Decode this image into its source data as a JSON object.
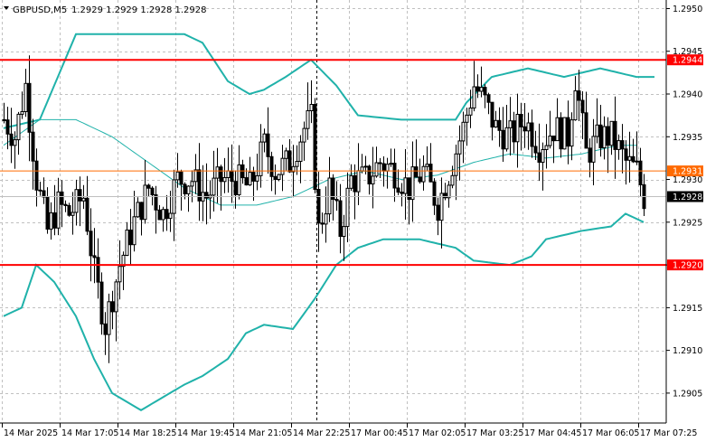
{
  "header": {
    "symbol": "GBPUSD,M5",
    "ohlc": "1.2929 1.2929 1.2928 1.2928"
  },
  "chart_data": {
    "type": "candlestick",
    "symbol": "GBPUSD",
    "timeframe": "M5",
    "y_ticks": [
      "1.2950",
      "1.2945",
      "1.2940",
      "1.2935",
      "1.2930",
      "1.2925",
      "1.2920",
      "1.2915",
      "1.2910",
      "1.2905"
    ],
    "y_tick_values": [
      1.295,
      1.2945,
      1.294,
      1.2935,
      1.293,
      1.2925,
      1.292,
      1.2915,
      1.291,
      1.2905
    ],
    "ylim": [
      1.29015,
      1.2951
    ],
    "x_ticks": [
      "14 Mar 2025",
      "14 Mar 17:05",
      "14 Mar 18:25",
      "14 Mar 19:45",
      "14 Mar 21:05",
      "14 Mar 22:25",
      "17 Mar 00:45",
      "17 Mar 02:05",
      "17 Mar 03:25",
      "17 Mar 04:45",
      "17 Mar 06:05",
      "17 Mar 07:25"
    ],
    "grid": true,
    "levels": [
      {
        "label": "1.2944",
        "value": 1.2944,
        "color": "#ff0000"
      },
      {
        "label": "1.2931",
        "value": 1.2931,
        "color": "#ff6a00"
      },
      {
        "label": "1.2920",
        "value": 1.292,
        "color": "#ff0000"
      }
    ],
    "current_price": {
      "label": "1.2928",
      "value": 1.2928,
      "color": "#000000"
    },
    "session_separator_index": 87,
    "bollinger": {
      "color": "#20b2aa",
      "upper": [
        [
          0,
          1.2936
        ],
        [
          10,
          1.2937
        ],
        [
          20,
          1.2947
        ],
        [
          30,
          1.2947
        ],
        [
          40,
          1.2947
        ],
        [
          50,
          1.2947
        ],
        [
          55,
          1.2946
        ],
        [
          62,
          1.29415
        ],
        [
          68,
          1.294
        ],
        [
          72,
          1.29405
        ],
        [
          78,
          1.2942
        ],
        [
          85,
          1.2944
        ],
        [
          92,
          1.2941
        ],
        [
          98,
          1.29375
        ],
        [
          110,
          1.2937
        ],
        [
          125,
          1.2937
        ],
        [
          128,
          1.2939
        ],
        [
          135,
          1.2942
        ],
        [
          145,
          1.2943
        ],
        [
          155,
          1.2942
        ],
        [
          165,
          1.2943
        ],
        [
          175,
          1.2942
        ],
        [
          180,
          1.2942
        ]
      ],
      "middle": [
        [
          0,
          1.2934
        ],
        [
          10,
          1.2937
        ],
        [
          20,
          1.2937
        ],
        [
          30,
          1.2935
        ],
        [
          40,
          1.2932
        ],
        [
          50,
          1.2929
        ],
        [
          60,
          1.2927
        ],
        [
          70,
          1.2927
        ],
        [
          80,
          1.2928
        ],
        [
          85,
          1.2929
        ],
        [
          90,
          1.293
        ],
        [
          100,
          1.2931
        ],
        [
          110,
          1.293
        ],
        [
          120,
          1.29305
        ],
        [
          130,
          1.2932
        ],
        [
          140,
          1.2933
        ],
        [
          150,
          1.29325
        ],
        [
          160,
          1.2933
        ],
        [
          170,
          1.2934
        ],
        [
          175,
          1.2934
        ]
      ],
      "lower": [
        [
          0,
          1.2914
        ],
        [
          5,
          1.2915
        ],
        [
          9,
          1.292
        ],
        [
          14,
          1.2918
        ],
        [
          20,
          1.2914
        ],
        [
          25,
          1.2909
        ],
        [
          30,
          1.2905
        ],
        [
          38,
          1.2903
        ],
        [
          42,
          1.2904
        ],
        [
          50,
          1.2906
        ],
        [
          55,
          1.2907
        ],
        [
          62,
          1.2909
        ],
        [
          67,
          1.2912
        ],
        [
          72,
          1.2913
        ],
        [
          80,
          1.29125
        ],
        [
          86,
          1.2916
        ],
        [
          92,
          1.292
        ],
        [
          98,
          1.2922
        ],
        [
          105,
          1.2923
        ],
        [
          115,
          1.2923
        ],
        [
          125,
          1.2922
        ],
        [
          130,
          1.29205
        ],
        [
          140,
          1.292
        ],
        [
          146,
          1.2921
        ],
        [
          150,
          1.2923
        ],
        [
          160,
          1.2924
        ],
        [
          168,
          1.29245
        ],
        [
          172,
          1.2926
        ],
        [
          177,
          1.2925
        ]
      ]
    },
    "close_path": [
      [
        0,
        1.2937
      ],
      [
        3,
        1.2935
      ],
      [
        6,
        1.2941
      ],
      [
        9,
        1.293
      ],
      [
        12,
        1.2924
      ],
      [
        15,
        1.2927
      ],
      [
        18,
        1.2926
      ],
      [
        22,
        1.2928
      ],
      [
        25,
        1.2919
      ],
      [
        28,
        1.2913
      ],
      [
        32,
        1.292
      ],
      [
        36,
        1.2925
      ],
      [
        40,
        1.2929
      ],
      [
        44,
        1.2926
      ],
      [
        48,
        1.293
      ],
      [
        52,
        1.293
      ],
      [
        56,
        1.2928
      ],
      [
        60,
        1.293
      ],
      [
        64,
        1.293
      ],
      [
        68,
        1.2929
      ],
      [
        72,
        1.2934
      ],
      [
        75,
        1.2931
      ],
      [
        79,
        1.2932
      ],
      [
        83,
        1.2936
      ],
      [
        85,
        1.2937
      ],
      [
        87,
        1.2924
      ],
      [
        90,
        1.2929
      ],
      [
        93,
        1.2924
      ],
      [
        96,
        1.293
      ],
      [
        100,
        1.293
      ],
      [
        104,
        1.2932
      ],
      [
        108,
        1.2931
      ],
      [
        112,
        1.2929
      ],
      [
        116,
        1.2931
      ],
      [
        120,
        1.2927
      ],
      [
        124,
        1.2932
      ],
      [
        127,
        1.2936
      ],
      [
        130,
        1.2941
      ],
      [
        133,
        1.2939
      ],
      [
        136,
        1.2936
      ],
      [
        140,
        1.2935
      ],
      [
        144,
        1.2937
      ],
      [
        148,
        1.2934
      ],
      [
        152,
        1.2936
      ],
      [
        156,
        1.2935
      ],
      [
        158,
        1.2942
      ],
      [
        161,
        1.2933
      ],
      [
        165,
        1.2935
      ],
      [
        168,
        1.2935
      ],
      [
        172,
        1.2932
      ],
      [
        175,
        1.2931
      ],
      [
        177,
        1.2928
      ]
    ]
  }
}
